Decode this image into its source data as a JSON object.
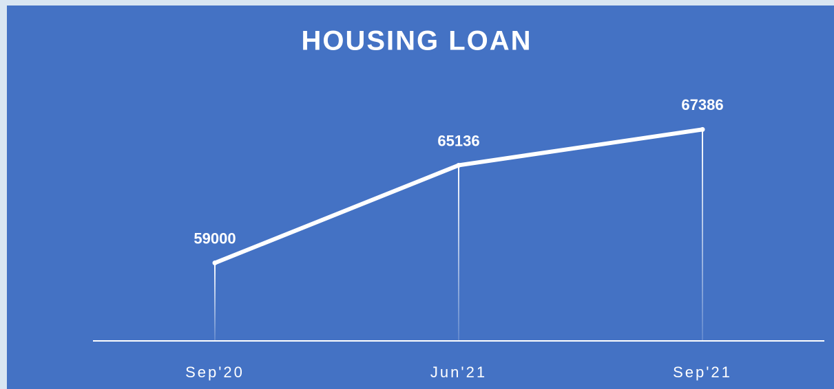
{
  "chart_data": {
    "type": "line",
    "title": "HOUSING LOAN",
    "categories": [
      "Sep'20",
      "Jun'21",
      "Sep'21"
    ],
    "values": [
      59000,
      65136,
      67386
    ],
    "color": "#ffffff",
    "ylim": [
      54100,
      69000
    ]
  }
}
